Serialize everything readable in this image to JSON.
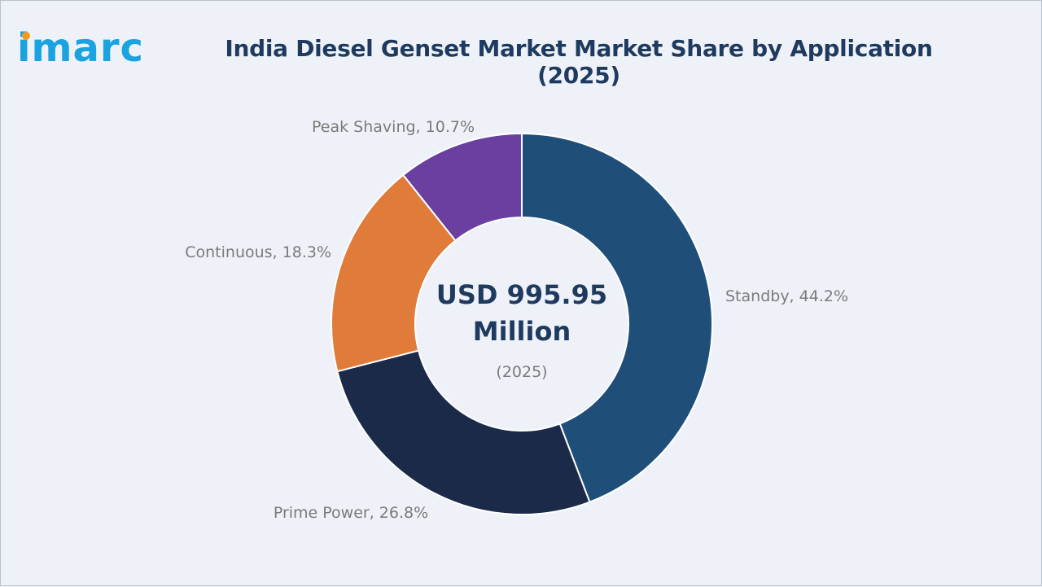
{
  "brand": {
    "logo_text": "imarc",
    "logo_color": "#1aa3e0",
    "logo_dot_color": "#f39a1e"
  },
  "title": "India Diesel Genset Market Market Share by Application (2025)",
  "center": {
    "value_line1": "USD 995.95",
    "value_line2": "Million",
    "year": "(2025)"
  },
  "chart_data": {
    "type": "pie",
    "donut": true,
    "start_angle": "12 o'clock, clockwise",
    "slices": [
      {
        "label": "Standby",
        "value": 44.2,
        "label_text": "Standby, 44.2%",
        "color": "#1f4e79"
      },
      {
        "label": "Prime Power",
        "value": 26.8,
        "label_text": "Prime Power, 26.8%",
        "color": "#1c2a4a"
      },
      {
        "label": "Continuous",
        "value": 18.3,
        "label_text": "Continuous, 18.3%",
        "color": "#e07b39"
      },
      {
        "label": "Peak Shaving",
        "value": 10.7,
        "label_text": "Peak Shaving, 10.7%",
        "color": "#6b3fa0"
      }
    ]
  }
}
